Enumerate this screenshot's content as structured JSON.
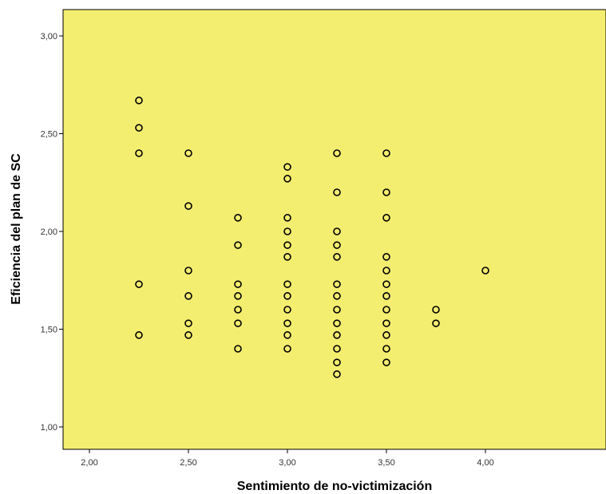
{
  "colors": {
    "plot_background": "#F4EE70",
    "marker_edge": "#000000",
    "page_background": "#FFFFFF"
  },
  "chart_data": {
    "type": "scatter",
    "title": "",
    "xlabel": "Sentimiento de no-victimización",
    "ylabel": "Eficiencia del plan de SC",
    "xlim": [
      1.9,
      4.05
    ],
    "ylim": [
      0.9,
      3.1
    ],
    "x_ticks": [
      "2,00",
      "2,50",
      "3,00",
      "3,50",
      "4,00"
    ],
    "x_tick_values": [
      2.0,
      2.5,
      3.0,
      3.5,
      4.0
    ],
    "y_ticks": [
      "1,00",
      "1,50",
      "2,00",
      "2,50",
      "3,00"
    ],
    "y_tick_values": [
      1.0,
      1.5,
      2.0,
      2.5,
      3.0
    ],
    "grid": false,
    "marker": "hollow-circle",
    "points": [
      {
        "x": 2.25,
        "y": 2.67
      },
      {
        "x": 2.25,
        "y": 2.53
      },
      {
        "x": 2.25,
        "y": 2.4
      },
      {
        "x": 2.25,
        "y": 1.73
      },
      {
        "x": 2.25,
        "y": 1.47
      },
      {
        "x": 2.5,
        "y": 2.4
      },
      {
        "x": 2.5,
        "y": 2.13
      },
      {
        "x": 2.5,
        "y": 1.8
      },
      {
        "x": 2.5,
        "y": 1.67
      },
      {
        "x": 2.5,
        "y": 1.53
      },
      {
        "x": 2.5,
        "y": 1.47
      },
      {
        "x": 2.75,
        "y": 2.07
      },
      {
        "x": 2.75,
        "y": 1.93
      },
      {
        "x": 2.75,
        "y": 1.73
      },
      {
        "x": 2.75,
        "y": 1.67
      },
      {
        "x": 2.75,
        "y": 1.6
      },
      {
        "x": 2.75,
        "y": 1.53
      },
      {
        "x": 2.75,
        "y": 1.4
      },
      {
        "x": 3.0,
        "y": 2.33
      },
      {
        "x": 3.0,
        "y": 2.27
      },
      {
        "x": 3.0,
        "y": 2.07
      },
      {
        "x": 3.0,
        "y": 2.0
      },
      {
        "x": 3.0,
        "y": 1.93
      },
      {
        "x": 3.0,
        "y": 1.87
      },
      {
        "x": 3.0,
        "y": 1.73
      },
      {
        "x": 3.0,
        "y": 1.67
      },
      {
        "x": 3.0,
        "y": 1.6
      },
      {
        "x": 3.0,
        "y": 1.53
      },
      {
        "x": 3.0,
        "y": 1.47
      },
      {
        "x": 3.0,
        "y": 1.4
      },
      {
        "x": 3.25,
        "y": 2.4
      },
      {
        "x": 3.25,
        "y": 2.2
      },
      {
        "x": 3.25,
        "y": 2.0
      },
      {
        "x": 3.25,
        "y": 1.93
      },
      {
        "x": 3.25,
        "y": 1.87
      },
      {
        "x": 3.25,
        "y": 1.73
      },
      {
        "x": 3.25,
        "y": 1.67
      },
      {
        "x": 3.25,
        "y": 1.6
      },
      {
        "x": 3.25,
        "y": 1.53
      },
      {
        "x": 3.25,
        "y": 1.47
      },
      {
        "x": 3.25,
        "y": 1.4
      },
      {
        "x": 3.25,
        "y": 1.33
      },
      {
        "x": 3.25,
        "y": 1.27
      },
      {
        "x": 3.5,
        "y": 2.4
      },
      {
        "x": 3.5,
        "y": 2.2
      },
      {
        "x": 3.5,
        "y": 2.07
      },
      {
        "x": 3.5,
        "y": 1.87
      },
      {
        "x": 3.5,
        "y": 1.8
      },
      {
        "x": 3.5,
        "y": 1.73
      },
      {
        "x": 3.5,
        "y": 1.67
      },
      {
        "x": 3.5,
        "y": 1.6
      },
      {
        "x": 3.5,
        "y": 1.53
      },
      {
        "x": 3.5,
        "y": 1.47
      },
      {
        "x": 3.5,
        "y": 1.4
      },
      {
        "x": 3.5,
        "y": 1.33
      },
      {
        "x": 3.75,
        "y": 1.6
      },
      {
        "x": 3.75,
        "y": 1.53
      },
      {
        "x": 4.0,
        "y": 1.8
      }
    ]
  }
}
